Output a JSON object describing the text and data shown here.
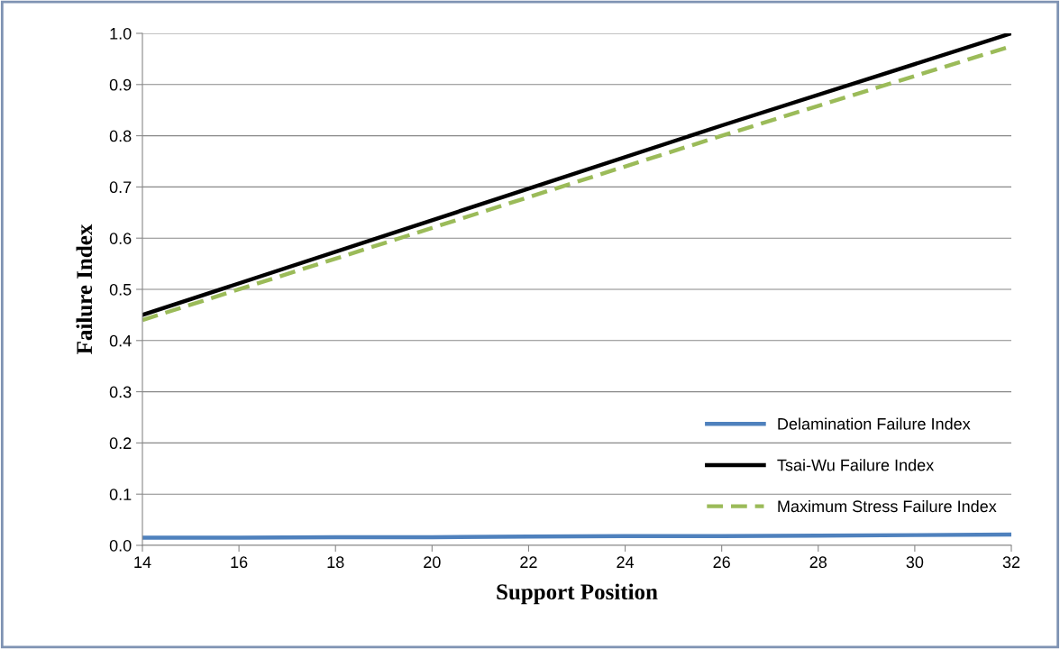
{
  "chart_data": {
    "type": "line",
    "xlabel": "Support Position",
    "ylabel": "Failure Index",
    "xlim": [
      14,
      32
    ],
    "xticks": [
      14,
      16,
      18,
      20,
      22,
      24,
      26,
      28,
      30,
      32
    ],
    "ylim": [
      0,
      1.0
    ],
    "yticks": [
      {
        "value": 0,
        "label": "0.0"
      },
      0.1,
      0.2,
      0.3,
      0.4,
      0.5,
      0.6,
      0.7,
      0.8,
      0.9,
      {
        "value": 1.0,
        "label": "1.0"
      }
    ],
    "grid": "y",
    "legend": "bottom right",
    "series": [
      {
        "name": "Delamination Failure Index",
        "color": "#4f81bd",
        "line_style": "solid",
        "x": [
          14,
          16,
          18,
          20,
          22,
          24,
          26,
          28,
          30,
          32
        ],
        "values": [
          0.015,
          0.015,
          0.016,
          0.016,
          0.017,
          0.018,
          0.018,
          0.019,
          0.02,
          0.021
        ]
      },
      {
        "name": "Tsai-Wu Failure Index",
        "color": "#000000",
        "line_style": "solid",
        "x": [
          14,
          20,
          26,
          32
        ],
        "values": [
          0.45,
          0.635,
          0.82,
          1.0
        ]
      },
      {
        "name": "Maximum Stress Failure Index",
        "color": "#9bbb59",
        "line_style": "dashed",
        "x": [
          14,
          20,
          26,
          32
        ],
        "values": [
          0.44,
          0.62,
          0.8,
          0.975
        ]
      }
    ]
  }
}
